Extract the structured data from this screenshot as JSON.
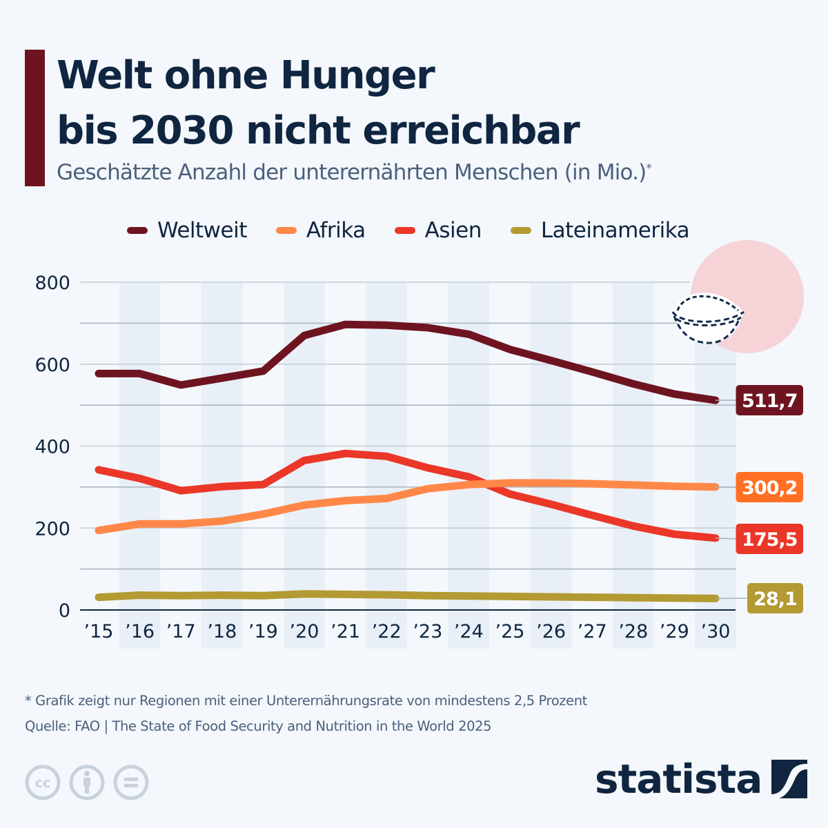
{
  "header": {
    "title_line1": "Welt ohne Hunger",
    "title_line2": "bis 2030 nicht erreichbar",
    "subtitle": "Geschätzte Anzahl der unterernährten Menschen (in Mio.)",
    "subtitle_marker": "*"
  },
  "colors": {
    "accent": "#6e1420",
    "background": "#f4f7fb",
    "text_dark": "#0f2540",
    "text_muted": "#4a607c",
    "band": "#e9eff7",
    "gridline": "#aab6c4",
    "illustration_circle": "#f5d3d6"
  },
  "legend": [
    {
      "label": "Weltweit",
      "color": "#6e1420"
    },
    {
      "label": "Afrika",
      "color": "#ff8849"
    },
    {
      "label": "Asien",
      "color": "#eb3728"
    },
    {
      "label": "Lateinamerika",
      "color": "#b39a32"
    }
  ],
  "chart_data": {
    "type": "line",
    "title": "Welt ohne Hunger bis 2030 nicht erreichbar",
    "subtitle": "Geschätzte Anzahl der unterernährten Menschen (in Mio.)*",
    "xlabel": "",
    "ylabel": "",
    "x": [
      "’15",
      "’16",
      "’17",
      "’18",
      "’19",
      "’20",
      "’21",
      "’22",
      "’23",
      "’24",
      "’25",
      "’26",
      "’27",
      "’28",
      "’29",
      "’30"
    ],
    "ylim": [
      0,
      800
    ],
    "yticks": [
      0,
      200,
      400,
      600,
      800
    ],
    "grid": true,
    "legend_position": "top",
    "series": [
      {
        "name": "Weltweit",
        "color": "#6e1420",
        "badge_color": "#6e1420",
        "end_label": "511,7",
        "values": [
          577,
          577,
          549,
          566,
          583,
          670,
          697,
          695,
          689,
          673,
          636,
          609,
          581,
          552,
          527,
          511.7
        ]
      },
      {
        "name": "Afrika",
        "color": "#ff8849",
        "badge_color": "#ff6f24",
        "end_label": "300,2",
        "values": [
          194,
          210,
          210,
          217,
          234,
          256,
          267,
          272,
          296,
          306,
          310,
          310,
          308,
          305,
          302,
          300.2
        ]
      },
      {
        "name": "Asien",
        "color": "#eb3728",
        "badge_color": "#eb3728",
        "end_label": "175,5",
        "values": [
          342,
          321,
          291,
          301,
          306,
          365,
          382,
          375,
          347,
          325,
          283,
          258,
          231,
          205,
          185,
          175.5
        ]
      },
      {
        "name": "Lateinamerika",
        "color": "#b39a32",
        "badge_color": "#b39a32",
        "end_label": "28,1",
        "values": [
          31,
          36,
          35,
          36,
          35,
          39,
          38,
          37,
          35,
          34,
          33,
          32,
          31,
          30,
          29,
          28.1
        ]
      }
    ]
  },
  "footer": {
    "note": "* Grafik zeigt nur Regionen mit einer Unterernährungsrate von mindestens 2,5 Prozent",
    "source": "Quelle: FAO | The State of Food Security and Nutrition in the World 2025",
    "license_icons": [
      "cc-icon",
      "attribution-icon",
      "no-derivatives-icon"
    ],
    "brand": "statista"
  }
}
